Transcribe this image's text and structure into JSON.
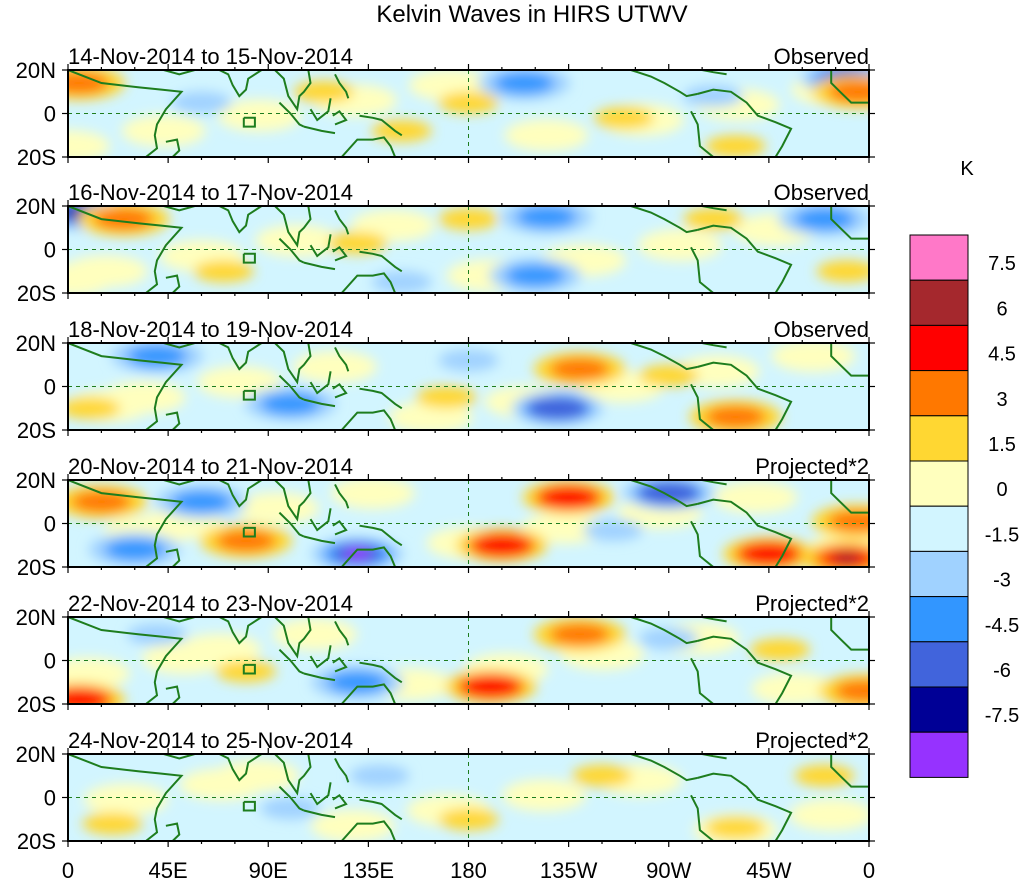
{
  "title": "Kelvin Waves in HIRS UTWV",
  "colorbar": {
    "unit": "K",
    "colors": [
      "#ff78c8",
      "#a5282d",
      "#ff0000",
      "#ff7800",
      "#ffd732",
      "#ffffbe",
      "#d2f5ff",
      "#a0d2ff",
      "#3296ff",
      "#4164dc",
      "#000096",
      "#9632ff"
    ],
    "labels": [
      "7.5",
      "6",
      "4.5",
      "3",
      "1.5",
      "0",
      "-1.5",
      "-3",
      "-4.5",
      "-6",
      "-7.5"
    ]
  },
  "lat_labels": [
    "20N",
    "0",
    "20S"
  ],
  "lon_labels": [
    "0",
    "45E",
    "90E",
    "135E",
    "180",
    "135W",
    "90W",
    "45W",
    "0"
  ],
  "panels": [
    {
      "date": "14-Nov-2014 to 15-Nov-2014",
      "type": "Observed"
    },
    {
      "date": "16-Nov-2014 to 17-Nov-2014",
      "type": "Observed"
    },
    {
      "date": "18-Nov-2014 to 19-Nov-2014",
      "type": "Observed"
    },
    {
      "date": "20-Nov-2014 to 21-Nov-2014",
      "type": "Projected*2"
    },
    {
      "date": "22-Nov-2014 to 23-Nov-2014",
      "type": "Projected*2"
    },
    {
      "date": "24-Nov-2014 to 25-Nov-2014",
      "type": "Projected*2"
    }
  ],
  "anomaly_features": [
    [
      {
        "lon": 5,
        "lat": 14,
        "v": 3
      },
      {
        "lon": 115,
        "lat": 10,
        "v": 1.5
      },
      {
        "lon": 150,
        "lat": -8,
        "v": 1.5
      },
      {
        "lon": 205,
        "lat": 14,
        "v": -3
      },
      {
        "lon": 250,
        "lat": -2,
        "v": 1.5
      },
      {
        "lon": 290,
        "lat": 8,
        "v": -1.5
      },
      {
        "lon": 350,
        "lat": 16,
        "v": -6
      },
      {
        "lon": 355,
        "lat": 10,
        "v": 3
      },
      {
        "lon": 300,
        "lat": -15,
        "v": 1.5
      },
      {
        "lon": 60,
        "lat": 5,
        "v": -1.5
      },
      {
        "lon": 180,
        "lat": 5,
        "v": 1.5
      }
    ],
    [
      {
        "lon": 5,
        "lat": 17,
        "v": -6
      },
      {
        "lon": 25,
        "lat": 14,
        "v": 3
      },
      {
        "lon": 180,
        "lat": 14,
        "v": 1.5
      },
      {
        "lon": 215,
        "lat": 15,
        "v": -3
      },
      {
        "lon": 210,
        "lat": -12,
        "v": -3
      },
      {
        "lon": 290,
        "lat": 14,
        "v": 1.5
      },
      {
        "lon": 130,
        "lat": 3,
        "v": 1.5
      },
      {
        "lon": 350,
        "lat": -10,
        "v": 1.5
      },
      {
        "lon": 340,
        "lat": 14,
        "v": -3
      },
      {
        "lon": 150,
        "lat": -15,
        "v": -1.5
      },
      {
        "lon": 70,
        "lat": -10,
        "v": 1.5
      }
    ],
    [
      {
        "lon": 230,
        "lat": 8,
        "v": 3
      },
      {
        "lon": 220,
        "lat": -10,
        "v": -4.5
      },
      {
        "lon": 170,
        "lat": -5,
        "v": 1.5
      },
      {
        "lon": 300,
        "lat": -14,
        "v": 3
      },
      {
        "lon": 40,
        "lat": 14,
        "v": -3
      },
      {
        "lon": 100,
        "lat": -8,
        "v": -3
      },
      {
        "lon": 180,
        "lat": 12,
        "v": -1.5
      },
      {
        "lon": 270,
        "lat": 5,
        "v": 1.5
      },
      {
        "lon": 10,
        "lat": -10,
        "v": 1.5
      }
    ],
    [
      {
        "lon": 225,
        "lat": 12,
        "v": 4.5
      },
      {
        "lon": 195,
        "lat": -10,
        "v": 4.5
      },
      {
        "lon": 130,
        "lat": -14,
        "v": -7.5
      },
      {
        "lon": 80,
        "lat": -8,
        "v": 3
      },
      {
        "lon": 315,
        "lat": -14,
        "v": 4.5
      },
      {
        "lon": 350,
        "lat": -16,
        "v": 6
      },
      {
        "lon": 270,
        "lat": 14,
        "v": -4.5
      },
      {
        "lon": 15,
        "lat": 10,
        "v": 3
      },
      {
        "lon": 355,
        "lat": 1,
        "v": 3
      },
      {
        "lon": 30,
        "lat": -12,
        "v": -3
      },
      {
        "lon": 60,
        "lat": 10,
        "v": -3
      },
      {
        "lon": 245,
        "lat": -3,
        "v": -1.5
      }
    ],
    [
      {
        "lon": 230,
        "lat": 12,
        "v": 3
      },
      {
        "lon": 190,
        "lat": -12,
        "v": 4.5
      },
      {
        "lon": 130,
        "lat": -10,
        "v": -3
      },
      {
        "lon": 358,
        "lat": -14,
        "v": 3
      },
      {
        "lon": 80,
        "lat": -5,
        "v": 1.5
      },
      {
        "lon": 320,
        "lat": 5,
        "v": 1.5
      },
      {
        "lon": 5,
        "lat": -18,
        "v": 4.5
      },
      {
        "lon": 270,
        "lat": 10,
        "v": -1.5
      },
      {
        "lon": 40,
        "lat": 12,
        "v": -1.5
      }
    ],
    [
      {
        "lon": 180,
        "lat": -10,
        "v": 1.5
      },
      {
        "lon": 240,
        "lat": 10,
        "v": 1.5
      },
      {
        "lon": 300,
        "lat": -14,
        "v": 1.5
      },
      {
        "lon": 100,
        "lat": -5,
        "v": -1.5
      },
      {
        "lon": 20,
        "lat": -12,
        "v": 1.5
      },
      {
        "lon": 340,
        "lat": 10,
        "v": 1.5
      },
      {
        "lon": 140,
        "lat": 10,
        "v": -1.5
      }
    ]
  ]
}
